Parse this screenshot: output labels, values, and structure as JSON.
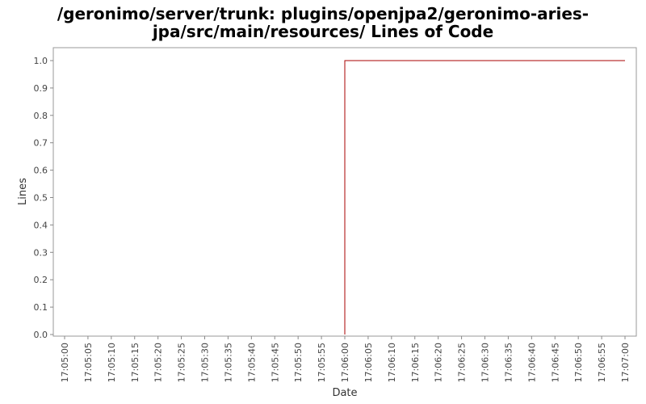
{
  "chart_data": {
    "type": "line",
    "title_lines": [
      "/geronimo/server/trunk: plugins/openjpa2/geronimo-aries-",
      "jpa/src/main/resources/ Lines of Code"
    ],
    "xlabel": "Date",
    "ylabel": "Lines",
    "x_ticks": [
      "17:05:00",
      "17:05:05",
      "17:05:10",
      "17:05:15",
      "17:05:20",
      "17:05:25",
      "17:05:30",
      "17:05:35",
      "17:05:40",
      "17:05:45",
      "17:05:50",
      "17:05:55",
      "17:06:00",
      "17:06:05",
      "17:06:10",
      "17:06:15",
      "17:06:20",
      "17:06:25",
      "17:06:30",
      "17:06:35",
      "17:06:40",
      "17:06:45",
      "17:06:50",
      "17:06:55",
      "17:07:00"
    ],
    "y_ticks": [
      "0.0",
      "0.1",
      "0.2",
      "0.3",
      "0.4",
      "0.5",
      "0.6",
      "0.7",
      "0.8",
      "0.9",
      "1.0"
    ],
    "ylim": [
      0,
      1.0
    ],
    "xlim": [
      "17:05:00",
      "17:07:00"
    ],
    "grid": false,
    "series": [
      {
        "color": "#aa0000",
        "points": [
          {
            "x": "17:06:00",
            "y": 0
          },
          {
            "x": "17:06:00",
            "y": 1.0
          },
          {
            "x": "17:07:00",
            "y": 1.0
          }
        ]
      }
    ]
  }
}
